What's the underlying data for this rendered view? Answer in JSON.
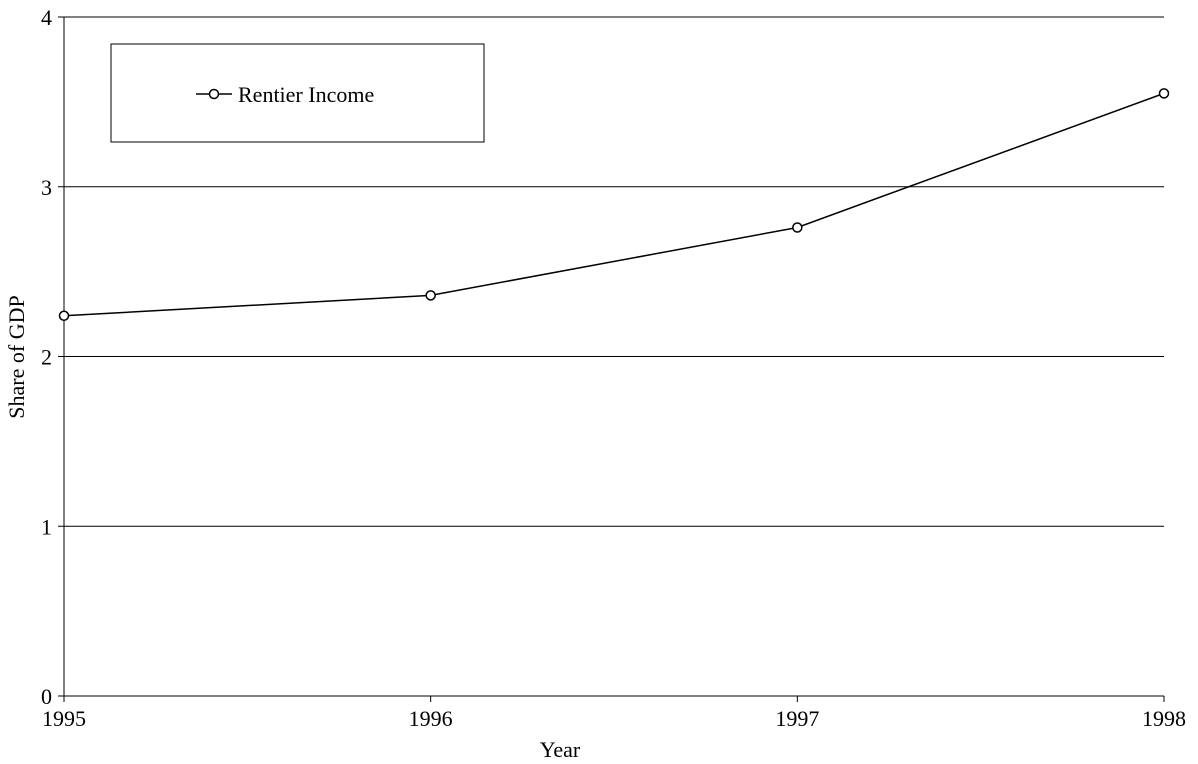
{
  "chart_data": {
    "type": "line",
    "x": [
      1995,
      1996,
      1997,
      1998
    ],
    "series": [
      {
        "name": "Rentier Income",
        "values": [
          2.24,
          2.36,
          2.76,
          3.55
        ]
      }
    ],
    "xlabel": "Year",
    "ylabel": "Share of GDP",
    "ylim": [
      0,
      4
    ],
    "yticks": [
      "0",
      "1",
      "2",
      "3",
      "4"
    ],
    "xticks": [
      "1995",
      "1996",
      "1997",
      "1998"
    ],
    "grid": "horizontal",
    "legend_position": "top-left",
    "colors": {
      "line": "#000000",
      "grid": "#000000",
      "background": "#ffffff"
    }
  }
}
